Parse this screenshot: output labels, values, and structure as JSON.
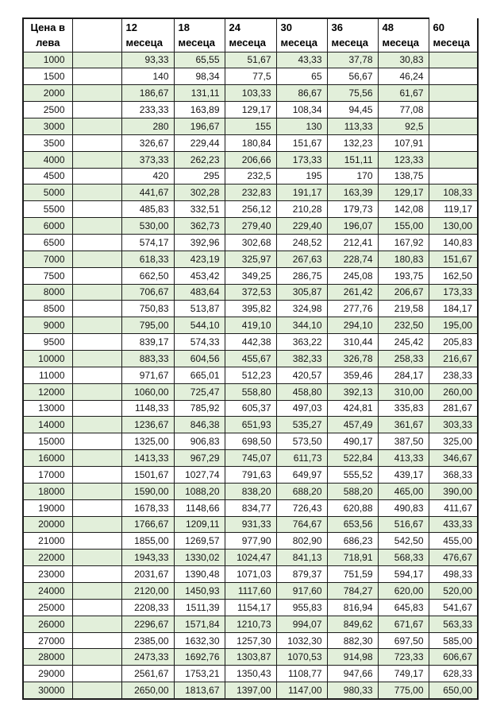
{
  "table": {
    "price_header": {
      "line1": "Цена в",
      "line2": "лева"
    },
    "months": [
      {
        "number": "12",
        "unit": "месеца"
      },
      {
        "number": "18",
        "unit": "месеца"
      },
      {
        "number": "24",
        "unit": "месеца"
      },
      {
        "number": "30",
        "unit": "месеца"
      },
      {
        "number": "36",
        "unit": "месеца"
      },
      {
        "number": "48",
        "unit": "месеца"
      },
      {
        "number": "60",
        "unit": "месеца"
      }
    ],
    "rows": [
      {
        "price": "1000",
        "values": [
          "93,33",
          "65,55",
          "51,67",
          "43,33",
          "37,78",
          "30,83",
          ""
        ]
      },
      {
        "price": "1500",
        "values": [
          "140",
          "98,34",
          "77,5",
          "65",
          "56,67",
          "46,24",
          ""
        ]
      },
      {
        "price": "2000",
        "values": [
          "186,67",
          "131,11",
          "103,33",
          "86,67",
          "75,56",
          "61,67",
          ""
        ]
      },
      {
        "price": "2500",
        "values": [
          "233,33",
          "163,89",
          "129,17",
          "108,34",
          "94,45",
          "77,08",
          ""
        ]
      },
      {
        "price": "3000",
        "values": [
          "280",
          "196,67",
          "155",
          "130",
          "113,33",
          "92,5",
          ""
        ]
      },
      {
        "price": "3500",
        "values": [
          "326,67",
          "229,44",
          "180,84",
          "151,67",
          "132,23",
          "107,91",
          ""
        ]
      },
      {
        "price": "4000",
        "values": [
          "373,33",
          "262,23",
          "206,66",
          "173,33",
          "151,11",
          "123,33",
          ""
        ]
      },
      {
        "price": "4500",
        "values": [
          "420",
          "295",
          "232,5",
          "195",
          "170",
          "138,75",
          ""
        ]
      },
      {
        "price": "5000",
        "values": [
          "441,67",
          "302,28",
          "232,83",
          "191,17",
          "163,39",
          "129,17",
          "108,33"
        ]
      },
      {
        "price": "5500",
        "values": [
          "485,83",
          "332,51",
          "256,12",
          "210,28",
          "179,73",
          "142,08",
          "119,17"
        ]
      },
      {
        "price": "6000",
        "values": [
          "530,00",
          "362,73",
          "279,40",
          "229,40",
          "196,07",
          "155,00",
          "130,00"
        ]
      },
      {
        "price": "6500",
        "values": [
          "574,17",
          "392,96",
          "302,68",
          "248,52",
          "212,41",
          "167,92",
          "140,83"
        ]
      },
      {
        "price": "7000",
        "values": [
          "618,33",
          "423,19",
          "325,97",
          "267,63",
          "228,74",
          "180,83",
          "151,67"
        ]
      },
      {
        "price": "7500",
        "values": [
          "662,50",
          "453,42",
          "349,25",
          "286,75",
          "245,08",
          "193,75",
          "162,50"
        ]
      },
      {
        "price": "8000",
        "values": [
          "706,67",
          "483,64",
          "372,53",
          "305,87",
          "261,42",
          "206,67",
          "173,33"
        ]
      },
      {
        "price": "8500",
        "values": [
          "750,83",
          "513,87",
          "395,82",
          "324,98",
          "277,76",
          "219,58",
          "184,17"
        ]
      },
      {
        "price": "9000",
        "values": [
          "795,00",
          "544,10",
          "419,10",
          "344,10",
          "294,10",
          "232,50",
          "195,00"
        ]
      },
      {
        "price": "9500",
        "values": [
          "839,17",
          "574,33",
          "442,38",
          "363,22",
          "310,44",
          "245,42",
          "205,83"
        ]
      },
      {
        "price": "10000",
        "values": [
          "883,33",
          "604,56",
          "455,67",
          "382,33",
          "326,78",
          "258,33",
          "216,67"
        ]
      },
      {
        "price": "11000",
        "values": [
          "971,67",
          "665,01",
          "512,23",
          "420,57",
          "359,46",
          "284,17",
          "238,33"
        ]
      },
      {
        "price": "12000",
        "values": [
          "1060,00",
          "725,47",
          "558,80",
          "458,80",
          "392,13",
          "310,00",
          "260,00"
        ]
      },
      {
        "price": "13000",
        "values": [
          "1148,33",
          "785,92",
          "605,37",
          "497,03",
          "424,81",
          "335,83",
          "281,67"
        ]
      },
      {
        "price": "14000",
        "values": [
          "1236,67",
          "846,38",
          "651,93",
          "535,27",
          "457,49",
          "361,67",
          "303,33"
        ]
      },
      {
        "price": "15000",
        "values": [
          "1325,00",
          "906,83",
          "698,50",
          "573,50",
          "490,17",
          "387,50",
          "325,00"
        ]
      },
      {
        "price": "16000",
        "values": [
          "1413,33",
          "967,29",
          "745,07",
          "611,73",
          "522,84",
          "413,33",
          "346,67"
        ]
      },
      {
        "price": "17000",
        "values": [
          "1501,67",
          "1027,74",
          "791,63",
          "649,97",
          "555,52",
          "439,17",
          "368,33"
        ]
      },
      {
        "price": "18000",
        "values": [
          "1590,00",
          "1088,20",
          "838,20",
          "688,20",
          "588,20",
          "465,00",
          "390,00"
        ]
      },
      {
        "price": "19000",
        "values": [
          "1678,33",
          "1148,66",
          "834,77",
          "726,43",
          "620,88",
          "490,83",
          "411,67"
        ]
      },
      {
        "price": "20000",
        "values": [
          "1766,67",
          "1209,11",
          "931,33",
          "764,67",
          "653,56",
          "516,67",
          "433,33"
        ]
      },
      {
        "price": "21000",
        "values": [
          "1855,00",
          "1269,57",
          "977,90",
          "802,90",
          "686,23",
          "542,50",
          "455,00"
        ]
      },
      {
        "price": "22000",
        "values": [
          "1943,33",
          "1330,02",
          "1024,47",
          "841,13",
          "718,91",
          "568,33",
          "476,67"
        ]
      },
      {
        "price": "23000",
        "values": [
          "2031,67",
          "1390,48",
          "1071,03",
          "879,37",
          "751,59",
          "594,17",
          "498,33"
        ]
      },
      {
        "price": "24000",
        "values": [
          "2120,00",
          "1450,93",
          "1117,60",
          "917,60",
          "784,27",
          "620,00",
          "520,00"
        ]
      },
      {
        "price": "25000",
        "values": [
          "2208,33",
          "1511,39",
          "1154,17",
          "955,83",
          "816,94",
          "645,83",
          "541,67"
        ]
      },
      {
        "price": "26000",
        "values": [
          "2296,67",
          "1571,84",
          "1210,73",
          "994,07",
          "849,62",
          "671,67",
          "563,33"
        ]
      },
      {
        "price": "27000",
        "values": [
          "2385,00",
          "1632,30",
          "1257,30",
          "1032,30",
          "882,30",
          "697,50",
          "585,00"
        ]
      },
      {
        "price": "28000",
        "values": [
          "2473,33",
          "1692,76",
          "1303,87",
          "1070,53",
          "914,98",
          "723,33",
          "606,67"
        ]
      },
      {
        "price": "29000",
        "values": [
          "2561,67",
          "1753,21",
          "1350,43",
          "1108,77",
          "947,66",
          "749,17",
          "628,33"
        ]
      },
      {
        "price": "30000",
        "values": [
          "2650,00",
          "1813,67",
          "1397,00",
          "1147,00",
          "980,33",
          "775,00",
          "650,00"
        ]
      }
    ]
  },
  "colors": {
    "band_green": "#e2efda",
    "border": "#1c1c1c",
    "background": "#ffffff"
  }
}
